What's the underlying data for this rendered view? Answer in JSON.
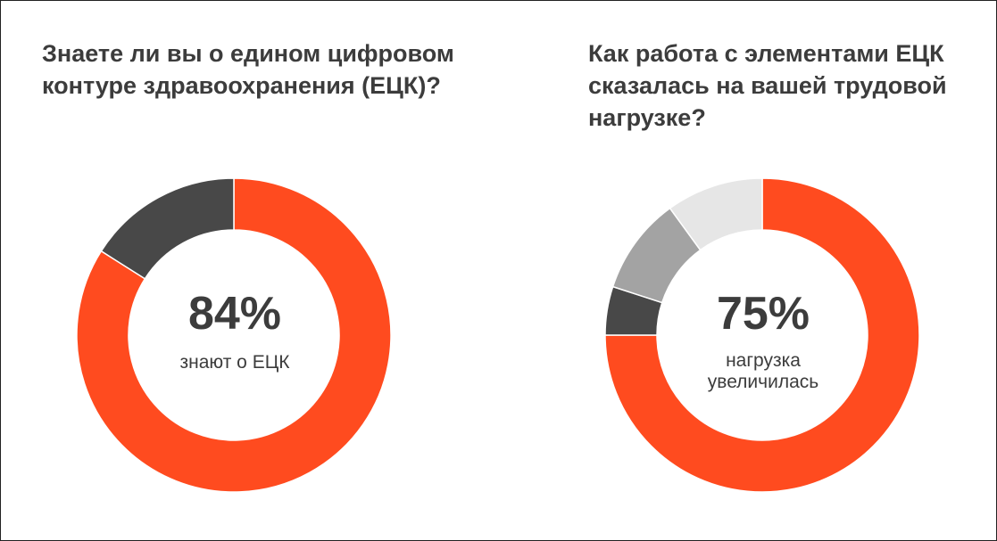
{
  "chart_data": [
    {
      "type": "pie",
      "title": "Знаете ли вы о едином цифровом контуре здравоохранения (ЕЦК)?",
      "center_value": "84%",
      "center_caption": "знают о ЕЦК",
      "values": [
        84,
        16
      ],
      "colors": [
        "#ff4b1f",
        "#484848"
      ]
    },
    {
      "type": "pie",
      "title": "Как работа с элементами ЕЦК сказалась на вашей трудовой нагрузке?",
      "center_value": "75%",
      "center_caption": "нагрузка\nувеличилась",
      "values": [
        75,
        5,
        10,
        10
      ],
      "colors": [
        "#ff4b1f",
        "#484848",
        "#a3a3a3",
        "#e6e6e6"
      ]
    }
  ]
}
